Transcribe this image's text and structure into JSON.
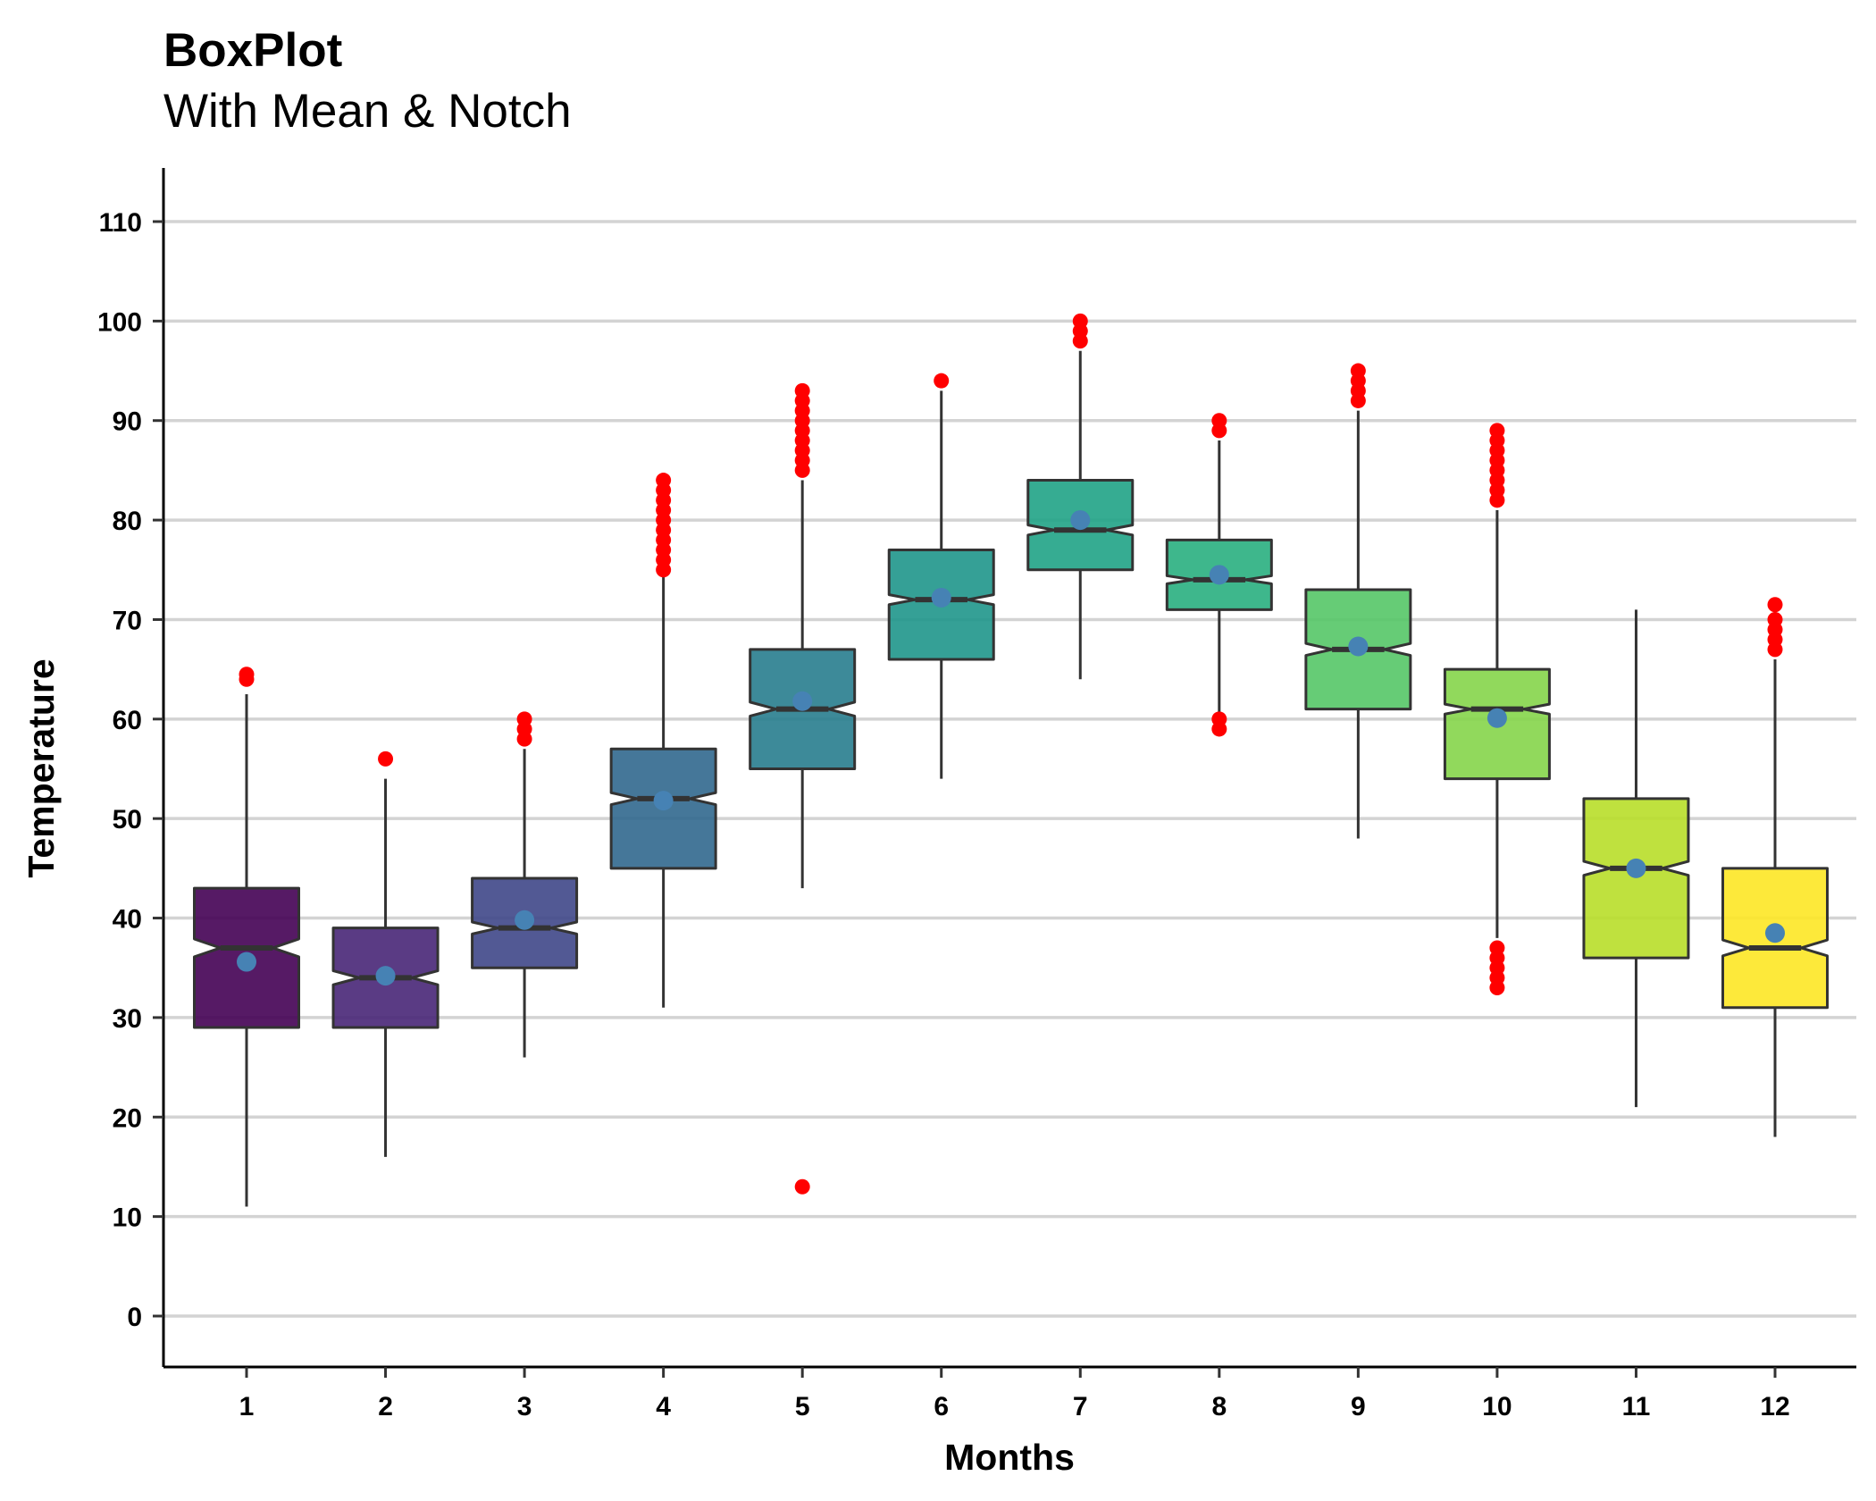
{
  "chart_data": {
    "type": "boxplot",
    "title": "BoxPlot",
    "subtitle": "With Mean & Notch",
    "xlabel": "Months",
    "ylabel": "Temperature",
    "ylim": [
      -5,
      115
    ],
    "yticks": [
      0,
      10,
      20,
      30,
      40,
      50,
      60,
      70,
      80,
      90,
      100,
      110
    ],
    "categories": [
      "1",
      "2",
      "3",
      "4",
      "5",
      "6",
      "7",
      "8",
      "9",
      "10",
      "11",
      "12"
    ],
    "grid": "horizontal",
    "legend": "none",
    "box_fill_alpha": 0.9,
    "colors": [
      "#440154",
      "#482677",
      "#3F4788",
      "#31688E",
      "#287D8E",
      "#1F968B",
      "#20A386",
      "#29AF7F",
      "#55C667",
      "#85D54A",
      "#B8DE29",
      "#FDE725"
    ],
    "outlier_color": "#FF0000",
    "mean_color": "#4682B4",
    "boxes": [
      {
        "month": "1",
        "whisker_low": 11,
        "q1": 29,
        "median": 37,
        "q3": 43,
        "whisker_high": 62.5,
        "mean": 35.6,
        "notch_half": 0.9,
        "outliers": [
          64,
          64.5
        ]
      },
      {
        "month": "2",
        "whisker_low": 16,
        "q1": 29,
        "median": 34,
        "q3": 39,
        "whisker_high": 54,
        "mean": 34.2,
        "notch_half": 0.7,
        "outliers": [
          56
        ]
      },
      {
        "month": "3",
        "whisker_low": 26,
        "q1": 35,
        "median": 39,
        "q3": 44,
        "whisker_high": 57,
        "mean": 39.8,
        "notch_half": 0.6,
        "outliers": [
          58,
          59,
          60
        ]
      },
      {
        "month": "4",
        "whisker_low": 31,
        "q1": 45,
        "median": 52,
        "q3": 57,
        "whisker_high": 75,
        "mean": 51.8,
        "notch_half": 0.6,
        "outliers": [
          75,
          76,
          77,
          78,
          79,
          80,
          81,
          82,
          83,
          84
        ]
      },
      {
        "month": "5",
        "whisker_low": 43,
        "q1": 55,
        "median": 61,
        "q3": 67,
        "whisker_high": 84,
        "mean": 61.8,
        "notch_half": 0.7,
        "outliers": [
          13,
          85,
          86,
          87,
          88,
          89,
          90,
          91,
          92,
          93
        ]
      },
      {
        "month": "6",
        "whisker_low": 54,
        "q1": 66,
        "median": 72,
        "q3": 77,
        "whisker_high": 93,
        "mean": 72.2,
        "notch_half": 0.5,
        "outliers": [
          94
        ]
      },
      {
        "month": "7",
        "whisker_low": 64,
        "q1": 75,
        "median": 79,
        "q3": 84,
        "whisker_high": 97,
        "mean": 80.0,
        "notch_half": 0.5,
        "outliers": [
          98,
          99,
          100
        ]
      },
      {
        "month": "8",
        "whisker_low": 60,
        "q1": 71,
        "median": 74,
        "q3": 78,
        "whisker_high": 88,
        "mean": 74.5,
        "notch_half": 0.4,
        "outliers": [
          59,
          60,
          89,
          90
        ]
      },
      {
        "month": "9",
        "whisker_low": 48,
        "q1": 61,
        "median": 67,
        "q3": 73,
        "whisker_high": 91,
        "mean": 67.3,
        "notch_half": 0.6,
        "outliers": [
          92,
          93,
          94,
          95
        ]
      },
      {
        "month": "10",
        "whisker_low": 38,
        "q1": 54,
        "median": 61,
        "q3": 65,
        "whisker_high": 81,
        "mean": 60.1,
        "notch_half": 0.5,
        "outliers": [
          33,
          34,
          35,
          36,
          37,
          82,
          83,
          84,
          85,
          86,
          87,
          88,
          89
        ]
      },
      {
        "month": "11",
        "whisker_low": 21,
        "q1": 36,
        "median": 45,
        "q3": 52,
        "whisker_high": 71,
        "mean": 45.0,
        "notch_half": 0.7,
        "outliers": []
      },
      {
        "month": "12",
        "whisker_low": 18,
        "q1": 31,
        "median": 37,
        "q3": 45,
        "whisker_high": 66,
        "mean": 38.5,
        "notch_half": 0.8,
        "outliers": [
          67,
          68,
          69,
          70,
          71.5
        ]
      }
    ]
  }
}
